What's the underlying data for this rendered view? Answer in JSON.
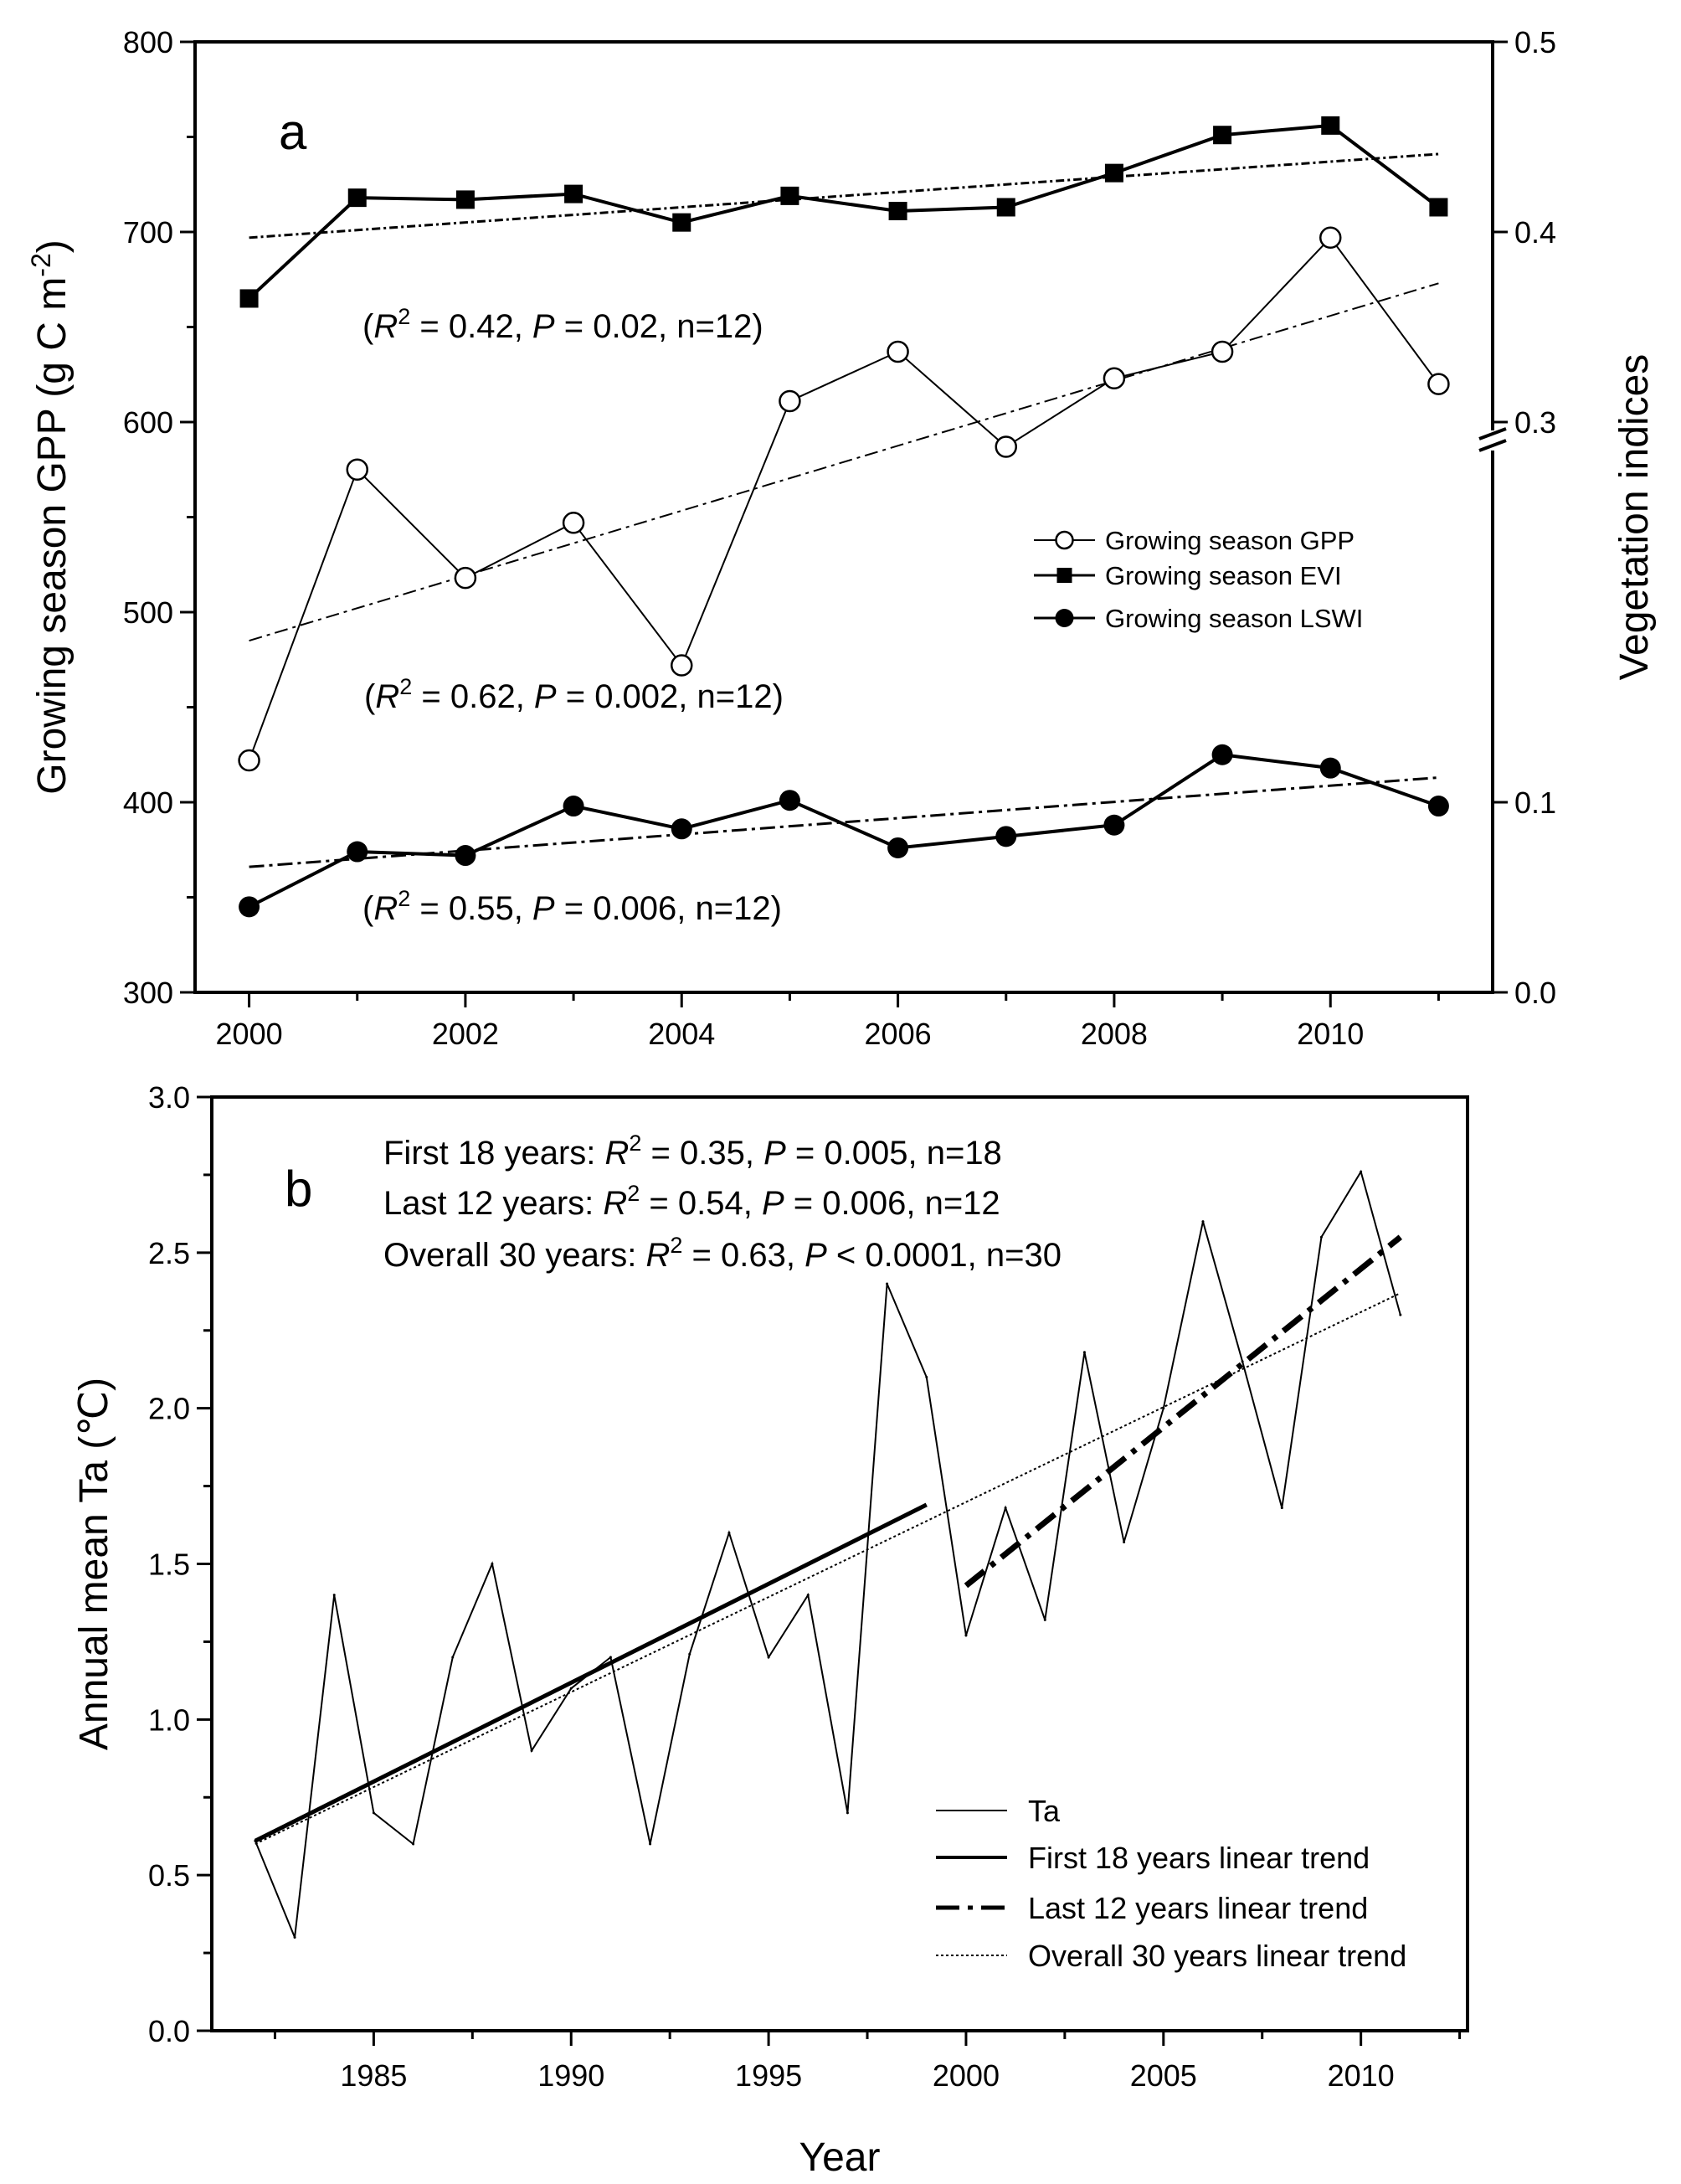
{
  "chart_data": [
    {
      "type": "line",
      "panel_label": "a",
      "x": [
        2000,
        2001,
        2002,
        2003,
        2004,
        2005,
        2006,
        2007,
        2008,
        2009,
        2010,
        2011
      ],
      "xticks": [
        "2000",
        "2002",
        "2004",
        "2006",
        "2008",
        "2010"
      ],
      "xlim": [
        1999.5,
        2011.5
      ],
      "ylabel": "Growing season GPP (g C m-2)",
      "ylabel_parts": {
        "pre": "Growing season GPP (g C m",
        "sup": "-2",
        "post": ")"
      },
      "ylim": [
        300,
        800
      ],
      "yticks": [
        "300",
        "400",
        "500",
        "600",
        "700",
        "800"
      ],
      "y2label": "Vegetation indices",
      "y2lim": [
        0.0,
        0.5
      ],
      "y2ticks": [
        "0.0",
        "0.1",
        "0.3",
        "0.4",
        "0.5"
      ],
      "y2_break": "0.2",
      "series": [
        {
          "name": "Growing season GPP",
          "axis": "left",
          "marker": "open-circle",
          "values": [
            422,
            575,
            518,
            547,
            472,
            611,
            637,
            587,
            623,
            637,
            697,
            620
          ],
          "trend": [
            485,
            673
          ]
        },
        {
          "name": "Growing season EVI",
          "axis": "right",
          "marker": "filled-square",
          "values": [
            0.365,
            0.418,
            0.417,
            0.42,
            0.405,
            0.419,
            0.411,
            0.413,
            0.431,
            0.451,
            0.456,
            0.413
          ],
          "trend": [
            0.397,
            0.441
          ]
        },
        {
          "name": "Growing season LSWI",
          "axis": "right",
          "marker": "filled-circle",
          "values": [
            0.045,
            0.074,
            0.072,
            0.098,
            0.086,
            0.101,
            0.076,
            0.082,
            0.088,
            0.125,
            0.118,
            0.098
          ],
          "trend": [
            0.066,
            0.113
          ]
        }
      ],
      "annotations": [
        {
          "p1": "(",
          "r": "R",
          "sup": "2",
          "p2": " = 0.42, ",
          "pv": "P",
          "p3": " = 0.02, n=12)"
        },
        {
          "p1": "(",
          "r": "R",
          "sup": "2",
          "p2": " = 0.62, ",
          "pv": "P",
          "p3": " = 0.002, n=12)"
        },
        {
          "p1": "(",
          "r": "R",
          "sup": "2",
          "p2": " = 0.55, ",
          "pv": "P",
          "p3": " = 0.006, n=12)"
        }
      ],
      "legend_position": "center-right"
    },
    {
      "type": "line",
      "panel_label": "b",
      "x": [
        1982,
        1983,
        1984,
        1985,
        1986,
        1987,
        1988,
        1989,
        1990,
        1991,
        1992,
        1993,
        1994,
        1995,
        1996,
        1997,
        1998,
        1999,
        2000,
        2001,
        2002,
        2003,
        2004,
        2005,
        2006,
        2007,
        2008,
        2009,
        2010,
        2011
      ],
      "xlim": [
        1980.9,
        2012.7
      ],
      "xticks": [
        "1985",
        "1990",
        "1995",
        "2000",
        "2005",
        "2010"
      ],
      "xlabel": "Year",
      "ylabel": "Annual mean Ta (℃)",
      "ylim": [
        0.0,
        3.0
      ],
      "yticks": [
        "0.0",
        "0.5",
        "1.0",
        "1.5",
        "2.0",
        "2.5",
        "3.0"
      ],
      "series": [
        {
          "name": "Ta",
          "style": "thin-solid",
          "values": [
            0.61,
            0.3,
            1.4,
            0.7,
            0.6,
            1.2,
            1.5,
            0.9,
            1.1,
            1.2,
            0.6,
            1.21,
            1.6,
            1.2,
            1.4,
            0.7,
            2.4,
            2.1,
            1.27,
            1.68,
            1.32,
            2.18,
            1.57,
            2.0,
            2.6,
            2.15,
            1.68,
            2.55,
            2.76,
            2.3
          ]
        },
        {
          "name": "First 18 years linear trend",
          "style": "thick-solid",
          "x_range": [
            1982,
            1999
          ],
          "y_range": [
            0.61,
            1.69
          ]
        },
        {
          "name": "Last 12 years linear trend",
          "style": "thick-dashdot",
          "x_range": [
            2000,
            2011
          ],
          "y_range": [
            1.43,
            2.55
          ]
        },
        {
          "name": "Overall 30 years linear trend",
          "style": "thin-dotted",
          "x_range": [
            1982,
            2011
          ],
          "y_range": [
            0.6,
            2.37
          ]
        }
      ],
      "annotations": [
        {
          "p1": "First 18 years: ",
          "r": "R",
          "sup": "2",
          "p2": " = 0.35, ",
          "pv": "P",
          "p3": " = 0.005, n=18"
        },
        {
          "p1": "Last 12 years: ",
          "r": "R",
          "sup": "2",
          "p2": " = 0.54, ",
          "pv": "P",
          "p3": " = 0.006, n=12"
        },
        {
          "p1": "Overall 30 years: ",
          "r": "R",
          "sup": "2",
          "p2": " = 0.63, ",
          "pv": "P",
          "p3": " < 0.0001, n=30"
        }
      ],
      "legend_position": "bottom-right"
    }
  ]
}
